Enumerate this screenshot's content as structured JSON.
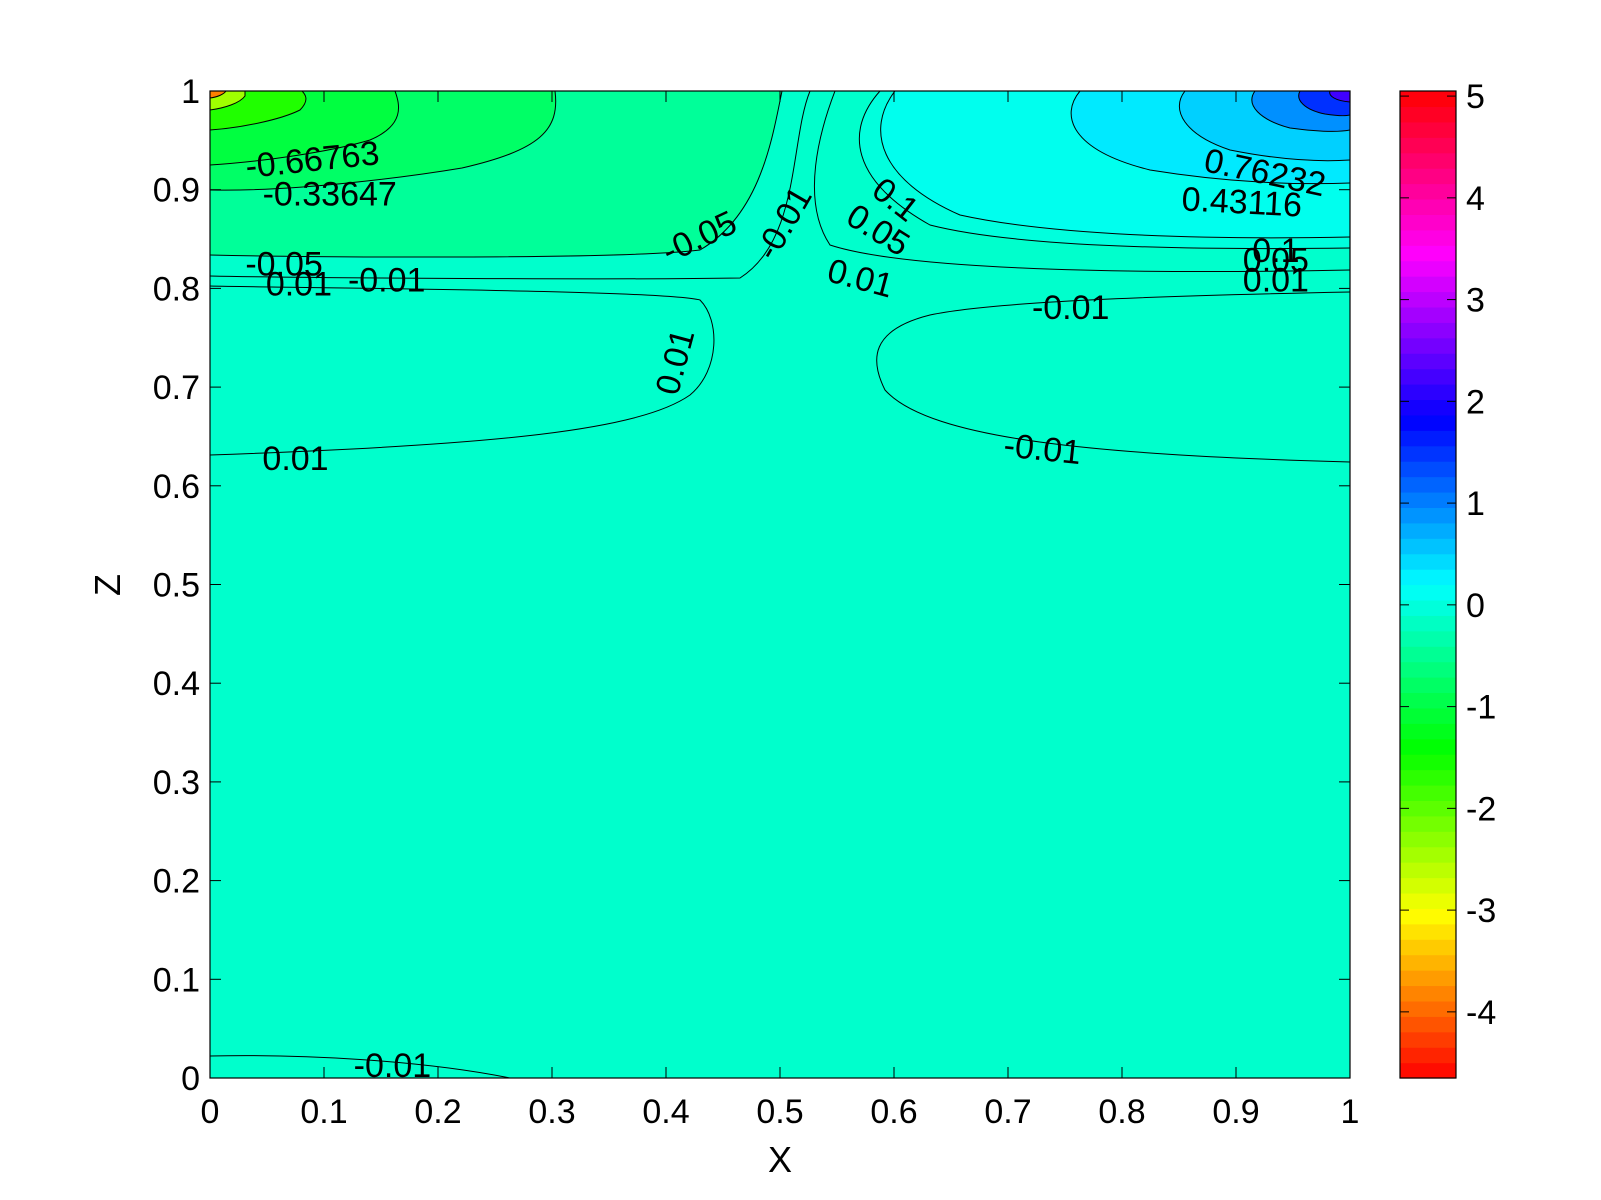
{
  "chart_data": {
    "type": "contour",
    "title": "",
    "xlabel": "X",
    "ylabel": "Z",
    "xlim": [
      0,
      1
    ],
    "ylim": [
      0,
      1
    ],
    "xticks": [
      "0",
      "0.1",
      "0.2",
      "0.3",
      "0.4",
      "0.5",
      "0.6",
      "0.7",
      "0.8",
      "0.9",
      "1"
    ],
    "yticks": [
      "0",
      "0.1",
      "0.2",
      "0.3",
      "0.4",
      "0.5",
      "0.6",
      "0.7",
      "0.8",
      "0.9",
      "1"
    ],
    "colorbar": {
      "range": [
        -4.65,
        5.05
      ],
      "ticks": [
        "5",
        "4",
        "3",
        "2",
        "1",
        "0",
        "-1",
        "-2",
        "-3",
        "-4"
      ],
      "colormap": [
        "#ff0000",
        "#ff8000",
        "#ffff00",
        "#80ff00",
        "#00ff00",
        "#00ff80",
        "#00ffff",
        "#0080ff",
        "#0000ff",
        "#8000ff",
        "#ff00ff",
        "#ff0080",
        "#ff0000"
      ]
    },
    "contour_labels": [
      {
        "text": "-0.66763",
        "x": 0.09,
        "z": 0.928
      },
      {
        "text": "-0.33647",
        "x": 0.105,
        "z": 0.893
      },
      {
        "text": "-0.05",
        "x": 0.065,
        "z": 0.822
      },
      {
        "text": "0.01",
        "x": 0.078,
        "z": 0.802
      },
      {
        "text": "-0.01",
        "x": 0.155,
        "z": 0.806
      },
      {
        "text": "-0.05",
        "x": 0.43,
        "z": 0.85
      },
      {
        "text": "-0.01",
        "x": 0.505,
        "z": 0.865
      },
      {
        "text": "0.1",
        "x": 0.6,
        "z": 0.888
      },
      {
        "text": "0.05",
        "x": 0.585,
        "z": 0.857
      },
      {
        "text": "0.01",
        "x": 0.57,
        "z": 0.808
      },
      {
        "text": "0.76232",
        "x": 0.925,
        "z": 0.915
      },
      {
        "text": "0.43116",
        "x": 0.905,
        "z": 0.885
      },
      {
        "text": "0.1",
        "x": 0.935,
        "z": 0.836
      },
      {
        "text": "0.05",
        "x": 0.935,
        "z": 0.826
      },
      {
        "text": "0.01",
        "x": 0.935,
        "z": 0.806
      },
      {
        "text": "-0.01",
        "x": 0.755,
        "z": 0.778
      },
      {
        "text": "0.01",
        "x": 0.41,
        "z": 0.725
      },
      {
        "text": "0.01",
        "x": 0.075,
        "z": 0.625
      },
      {
        "text": "-0.01",
        "x": 0.73,
        "z": 0.635
      },
      {
        "text": "-0.01",
        "x": 0.16,
        "z": 0.01
      }
    ]
  },
  "colors": {
    "background_field": "#00ffcc",
    "contour_line": "#000000"
  }
}
